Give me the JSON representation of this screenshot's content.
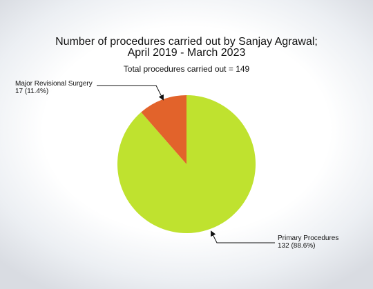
{
  "chart_data": {
    "type": "pie",
    "title_line1": "Number of procedures carried out by Sanjay Agrawal;",
    "title_line2": "April 2019 - March 2023",
    "subtitle": "Total procedures carried out = 149",
    "total": 149,
    "slices": [
      {
        "label": "Primary Procedures",
        "value": 132,
        "percent_text": "132 (88.6%)",
        "color": "#bfe22f"
      },
      {
        "label": "Major Revisional Surgery",
        "value": 17,
        "percent_text": "17 (11.4%)",
        "color": "#e2632b"
      }
    ]
  }
}
